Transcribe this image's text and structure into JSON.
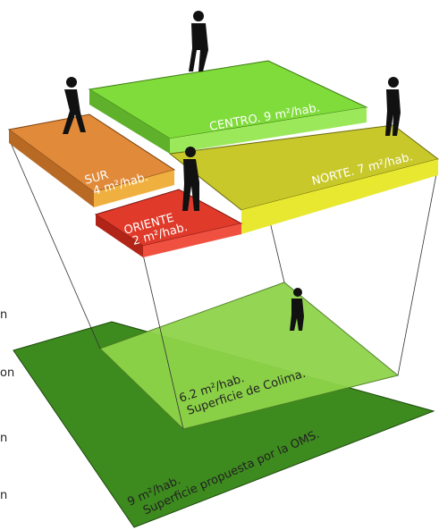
{
  "zones": [
    {
      "lines": [
        "CENTRO. 9 m²/hab."
      ]
    },
    {
      "lines": [
        "SUR",
        "4 m²/hab."
      ]
    },
    {
      "lines": [
        "ORIENTE",
        "2 m²/hab."
      ]
    },
    {
      "lines": [
        "NORTE. 7 m²/hab."
      ]
    }
  ],
  "colima": {
    "area": "6.2 m²/hab.",
    "label": "Superficie de Colima."
  },
  "oms": {
    "area": "9 m²/hab.",
    "label": "Superficie propuesta por la OMS."
  },
  "left_fragments": [
    "n",
    "on",
    "n",
    "n"
  ]
}
